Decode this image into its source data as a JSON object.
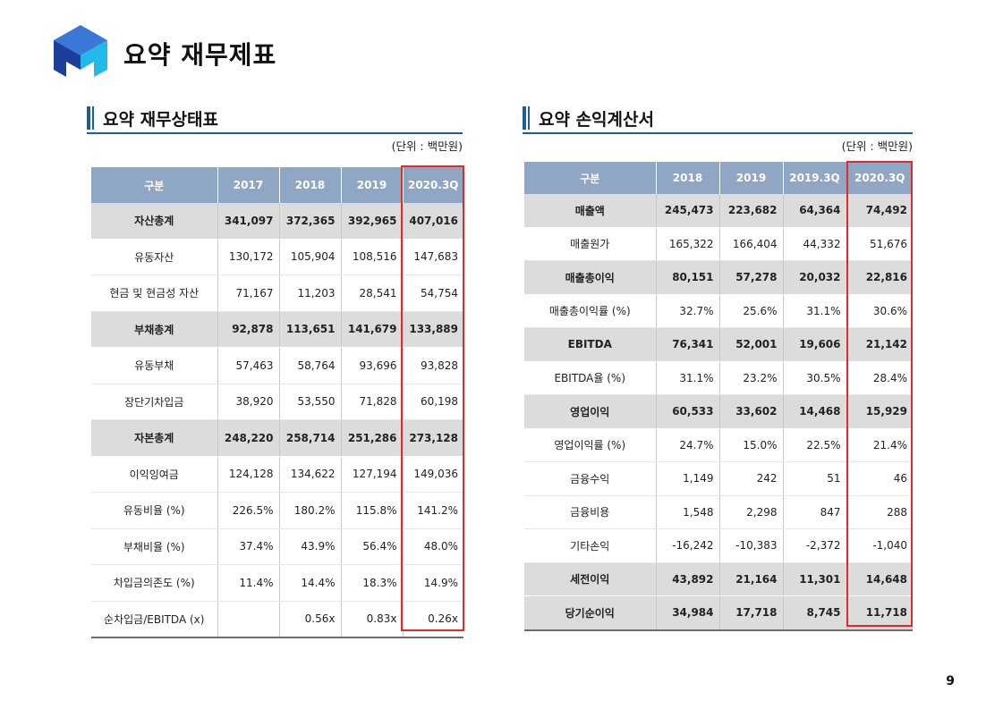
{
  "page_title": "요약 재무제표",
  "page_number": "9",
  "colors": {
    "accent": "#1f5c99",
    "header_bg": "#8fa6c5",
    "highlight_border": "#e02b2b",
    "bold_row_bg": "#dcdcdc"
  },
  "balance_sheet": {
    "title": "요약 재무상태표",
    "unit": "(단위 : 백만원)",
    "headers": [
      "구분",
      "2017",
      "2018",
      "2019",
      "2020.3Q"
    ],
    "rows": [
      {
        "bold": true,
        "cells": [
          "자산총계",
          "341,097",
          "372,365",
          "392,965",
          "407,016"
        ]
      },
      {
        "bold": false,
        "cells": [
          "유동자산",
          "130,172",
          "105,904",
          "108,516",
          "147,683"
        ]
      },
      {
        "bold": false,
        "cells": [
          "현금 및 현금성 자산",
          "71,167",
          "11,203",
          "28,541",
          "54,754"
        ]
      },
      {
        "bold": true,
        "cells": [
          "부채총계",
          "92,878",
          "113,651",
          "141,679",
          "133,889"
        ]
      },
      {
        "bold": false,
        "cells": [
          "유동부채",
          "57,463",
          "58,764",
          "93,696",
          "93,828"
        ]
      },
      {
        "bold": false,
        "cells": [
          "장단기차입금",
          "38,920",
          "53,550",
          "71,828",
          "60,198"
        ]
      },
      {
        "bold": true,
        "cells": [
          "자본총계",
          "248,220",
          "258,714",
          "251,286",
          "273,128"
        ]
      },
      {
        "bold": false,
        "cells": [
          "이익잉여금",
          "124,128",
          "134,622",
          "127,194",
          "149,036"
        ]
      },
      {
        "bold": false,
        "cells": [
          "유동비율 (%)",
          "226.5%",
          "180.2%",
          "115.8%",
          "141.2%"
        ]
      },
      {
        "bold": false,
        "cells": [
          "부채비율 (%)",
          "37.4%",
          "43.9%",
          "56.4%",
          "48.0%"
        ]
      },
      {
        "bold": false,
        "cells": [
          "차입금의존도 (%)",
          "11.4%",
          "14.4%",
          "18.3%",
          "14.9%"
        ]
      },
      {
        "bold": false,
        "cells": [
          "순차입금/EBITDA (x)",
          "",
          "0.56x",
          "0.83x",
          "0.26x"
        ]
      }
    ]
  },
  "income_statement": {
    "title": "요약 손익계산서",
    "unit": "(단위 : 백만원)",
    "headers": [
      "구분",
      "2018",
      "2019",
      "2019.3Q",
      "2020.3Q"
    ],
    "rows": [
      {
        "bold": true,
        "cells": [
          "매출액",
          "245,473",
          "223,682",
          "64,364",
          "74,492"
        ]
      },
      {
        "bold": false,
        "cells": [
          "매출원가",
          "165,322",
          "166,404",
          "44,332",
          "51,676"
        ]
      },
      {
        "bold": true,
        "cells": [
          "매출총이익",
          "80,151",
          "57,278",
          "20,032",
          "22,816"
        ]
      },
      {
        "bold": false,
        "cells": [
          "매출총이익률 (%)",
          "32.7%",
          "25.6%",
          "31.1%",
          "30.6%"
        ]
      },
      {
        "bold": true,
        "cells": [
          "EBITDA",
          "76,341",
          "52,001",
          "19,606",
          "21,142"
        ]
      },
      {
        "bold": false,
        "cells": [
          "EBITDA율 (%)",
          "31.1%",
          "23.2%",
          "30.5%",
          "28.4%"
        ]
      },
      {
        "bold": true,
        "cells": [
          "영업이익",
          "60,533",
          "33,602",
          "14,468",
          "15,929"
        ]
      },
      {
        "bold": false,
        "cells": [
          "영업이익률 (%)",
          "24.7%",
          "15.0%",
          "22.5%",
          "21.4%"
        ]
      },
      {
        "bold": false,
        "cells": [
          "금융수익",
          "1,149",
          "242",
          "51",
          "46"
        ]
      },
      {
        "bold": false,
        "cells": [
          "금융비용",
          "1,548",
          "2,298",
          "847",
          "288"
        ]
      },
      {
        "bold": false,
        "cells": [
          "기타손익",
          "-16,242",
          "-10,383",
          "-2,372",
          "-1,040"
        ]
      },
      {
        "bold": true,
        "cells": [
          "세전이익",
          "43,892",
          "21,164",
          "11,301",
          "14,648"
        ]
      },
      {
        "bold": true,
        "cells": [
          "당기순이익",
          "34,984",
          "17,718",
          "8,745",
          "11,718"
        ]
      }
    ]
  }
}
